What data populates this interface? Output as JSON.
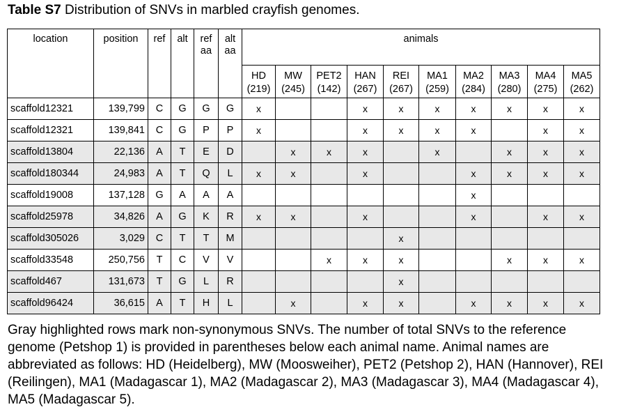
{
  "title": {
    "bold": "Table S7",
    "rest": "Distribution of SNVs in marbled crayfish genomes."
  },
  "headers": {
    "location": "location",
    "position": "position",
    "ref": "ref",
    "alt": "alt",
    "ref_aa": "ref aa",
    "alt_aa": "alt aa",
    "animals": "animals"
  },
  "animals": [
    {
      "name": "HD",
      "count": "(219)"
    },
    {
      "name": "MW",
      "count": "(245)"
    },
    {
      "name": "PET2",
      "count": "(142)"
    },
    {
      "name": "HAN",
      "count": "(267)"
    },
    {
      "name": "REI",
      "count": "(267)"
    },
    {
      "name": "MA1",
      "count": "(259)"
    },
    {
      "name": "MA2",
      "count": "(284)"
    },
    {
      "name": "MA3",
      "count": "(280)"
    },
    {
      "name": "MA4",
      "count": "(275)"
    },
    {
      "name": "MA5",
      "count": "(262)"
    }
  ],
  "mark_symbol": "x",
  "highlight_color": "#e8e8e8",
  "rows": [
    {
      "location": "scaffold12321",
      "position": "139,799",
      "ref": "C",
      "alt": "G",
      "ref_aa": "G",
      "alt_aa": "G",
      "non_synonymous": false,
      "marks": [
        1,
        0,
        0,
        1,
        1,
        1,
        1,
        1,
        1,
        1
      ]
    },
    {
      "location": "scaffold12321",
      "position": "139,841",
      "ref": "C",
      "alt": "G",
      "ref_aa": "P",
      "alt_aa": "P",
      "non_synonymous": false,
      "marks": [
        1,
        0,
        0,
        1,
        1,
        1,
        1,
        0,
        1,
        1
      ]
    },
    {
      "location": "scaffold13804",
      "position": "22,136",
      "ref": "A",
      "alt": "T",
      "ref_aa": "E",
      "alt_aa": "D",
      "non_synonymous": true,
      "marks": [
        0,
        1,
        1,
        1,
        0,
        1,
        0,
        1,
        1,
        1
      ]
    },
    {
      "location": "scaffold180344",
      "position": "24,983",
      "ref": "A",
      "alt": "T",
      "ref_aa": "Q",
      "alt_aa": "L",
      "non_synonymous": true,
      "marks": [
        1,
        1,
        0,
        1,
        0,
        0,
        1,
        1,
        1,
        1
      ]
    },
    {
      "location": "scaffold19008",
      "position": "137,128",
      "ref": "G",
      "alt": "A",
      "ref_aa": "A",
      "alt_aa": "A",
      "non_synonymous": false,
      "marks": [
        0,
        0,
        0,
        0,
        0,
        0,
        1,
        0,
        0,
        0
      ]
    },
    {
      "location": "scaffold25978",
      "position": "34,826",
      "ref": "A",
      "alt": "G",
      "ref_aa": "K",
      "alt_aa": "R",
      "non_synonymous": true,
      "marks": [
        1,
        1,
        0,
        1,
        0,
        0,
        1,
        0,
        1,
        1
      ]
    },
    {
      "location": "scaffold305026",
      "position": "3,029",
      "ref": "C",
      "alt": "T",
      "ref_aa": "T",
      "alt_aa": "M",
      "non_synonymous": true,
      "marks": [
        0,
        0,
        0,
        0,
        1,
        0,
        0,
        0,
        0,
        0
      ]
    },
    {
      "location": "scaffold33548",
      "position": "250,756",
      "ref": "T",
      "alt": "C",
      "ref_aa": "V",
      "alt_aa": "V",
      "non_synonymous": false,
      "marks": [
        0,
        0,
        1,
        1,
        1,
        0,
        0,
        1,
        1,
        1
      ]
    },
    {
      "location": "scaffold467",
      "position": "131,673",
      "ref": "T",
      "alt": "G",
      "ref_aa": "L",
      "alt_aa": "R",
      "non_synonymous": true,
      "marks": [
        0,
        0,
        0,
        0,
        1,
        0,
        0,
        0,
        0,
        0
      ]
    },
    {
      "location": "scaffold96424",
      "position": "36,615",
      "ref": "A",
      "alt": "T",
      "ref_aa": "H",
      "alt_aa": "L",
      "non_synonymous": true,
      "marks": [
        0,
        1,
        0,
        1,
        1,
        0,
        1,
        1,
        1,
        1
      ]
    }
  ],
  "caption": "Gray highlighted rows mark non-synonymous SNVs. The number of total SNVs to the reference genome (Petshop 1) is provided in parentheses below each animal name. Animal names are abbreviated as follows: HD (Heidelberg), MW (Moosweiher), PET2 (Petshop 2), HAN (Hannover), REI (Reilingen), MA1 (Madagascar 1), MA2 (Madagascar 2), MA3 (Madagascar 3), MA4 (Madagascar 4), MA5 (Madagascar 5)."
}
